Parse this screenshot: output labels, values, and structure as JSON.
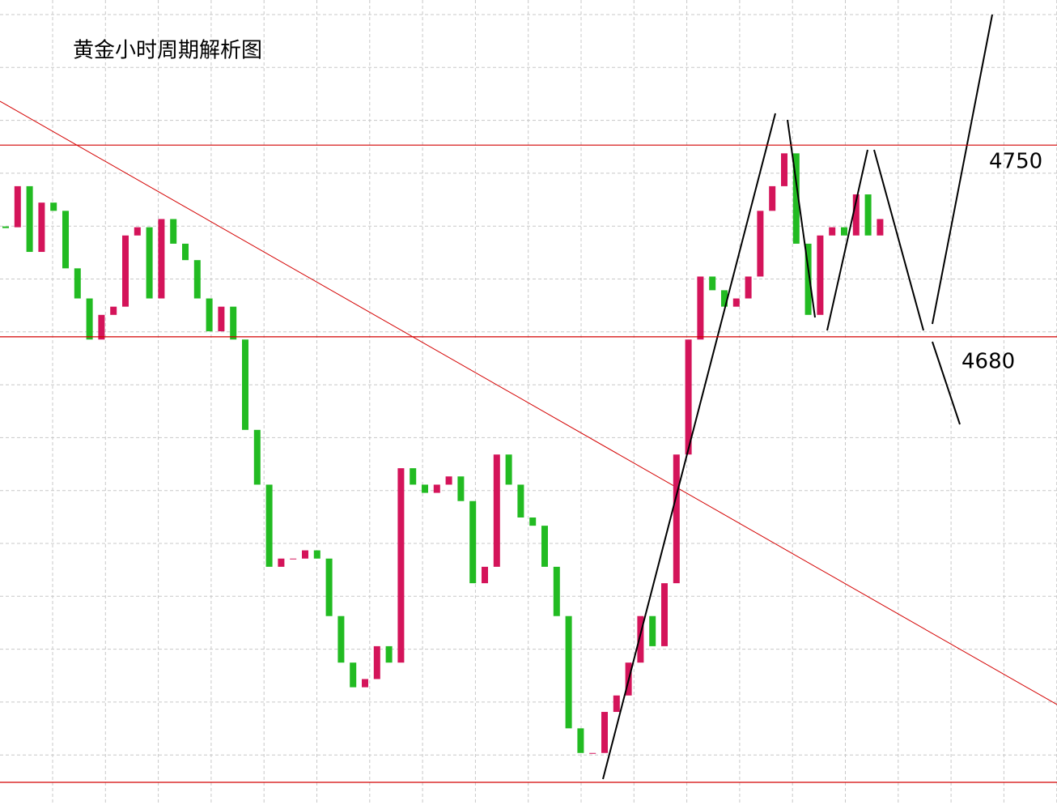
{
  "chart_data": {
    "type": "candlestick",
    "title": "黄金小时周期解析图",
    "close": [
      4720,
      4735,
      4711,
      4729,
      4726,
      4705,
      4694,
      4679,
      4688,
      4691,
      4717,
      4720,
      4694,
      4723,
      4714,
      4708,
      4694,
      4682,
      4691,
      4679,
      4646,
      4626,
      4596,
      4599,
      4599,
      4602,
      4599,
      4578,
      4561,
      4552,
      4555,
      4567,
      4561,
      4632,
      4626,
      4623,
      4626,
      4629,
      4620,
      4590,
      4596,
      4637,
      4626,
      4614,
      4611,
      4596,
      4578,
      4537,
      4528,
      4528,
      4543,
      4549,
      4561,
      4578,
      4567,
      4590,
      4637,
      4679,
      4702,
      4697,
      4691,
      4694,
      4702,
      4726,
      4735,
      4747,
      4714,
      4688,
      4717,
      4720,
      4717,
      4732,
      4717,
      4723
    ],
    "up_color": "#d4145a",
    "down_color": "#22bb22",
    "levels": [
      4750,
      4680
    ],
    "level_color": "#d40000",
    "ylim": [
      4803,
      4509
    ],
    "grid": true
  }
}
